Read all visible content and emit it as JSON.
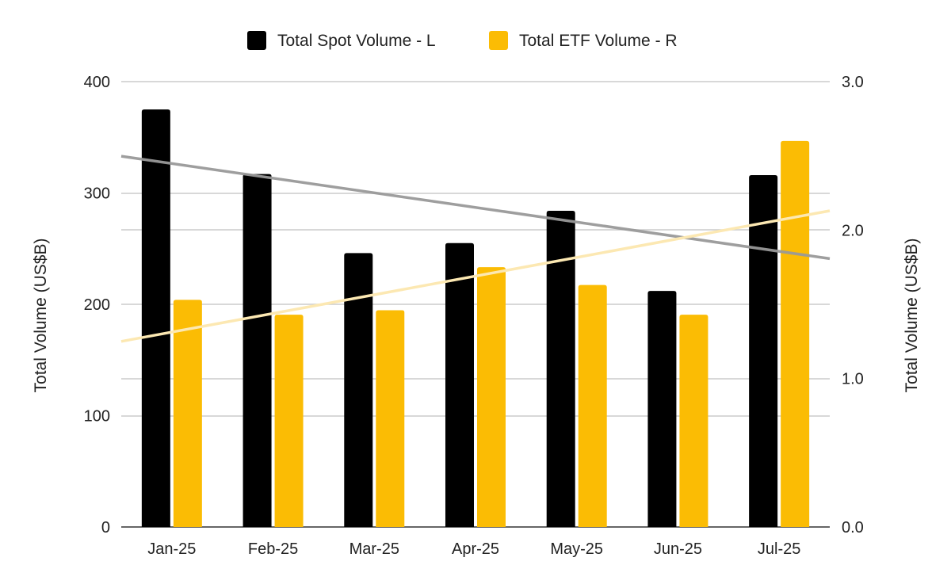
{
  "chart_data": {
    "type": "bar",
    "categories": [
      "Jan-25",
      "Feb-25",
      "Mar-25",
      "Apr-25",
      "May-25",
      "Jun-25",
      "Jul-25"
    ],
    "series": [
      {
        "name": "Total Spot Volume - L",
        "axis": "left",
        "color": "#000000",
        "values": [
          375,
          317,
          246,
          255,
          284,
          212,
          316
        ]
      },
      {
        "name": "Total ETF Volume - R",
        "axis": "right",
        "color": "#fbbc04",
        "values": [
          1.53,
          1.43,
          1.46,
          1.75,
          1.63,
          1.43,
          2.6
        ]
      }
    ],
    "trendlines": [
      {
        "series": "Total Spot Volume - L",
        "color": "#999999",
        "start": 333,
        "end": 241
      },
      {
        "series": "Total ETF Volume - R",
        "color": "#fce8b2",
        "start": 1.25,
        "end": 2.13
      }
    ],
    "y_left": {
      "label": "Total Volume (US$B)",
      "range": [
        0,
        400
      ],
      "ticks": [
        "0",
        "100",
        "200",
        "300",
        "400"
      ]
    },
    "y_right": {
      "label": "Total Volume (US$B)",
      "range": [
        0,
        3
      ],
      "ticks": [
        "0.0",
        "1.0",
        "2.0",
        "3.0"
      ]
    },
    "legend_position": "top",
    "grid": true
  }
}
